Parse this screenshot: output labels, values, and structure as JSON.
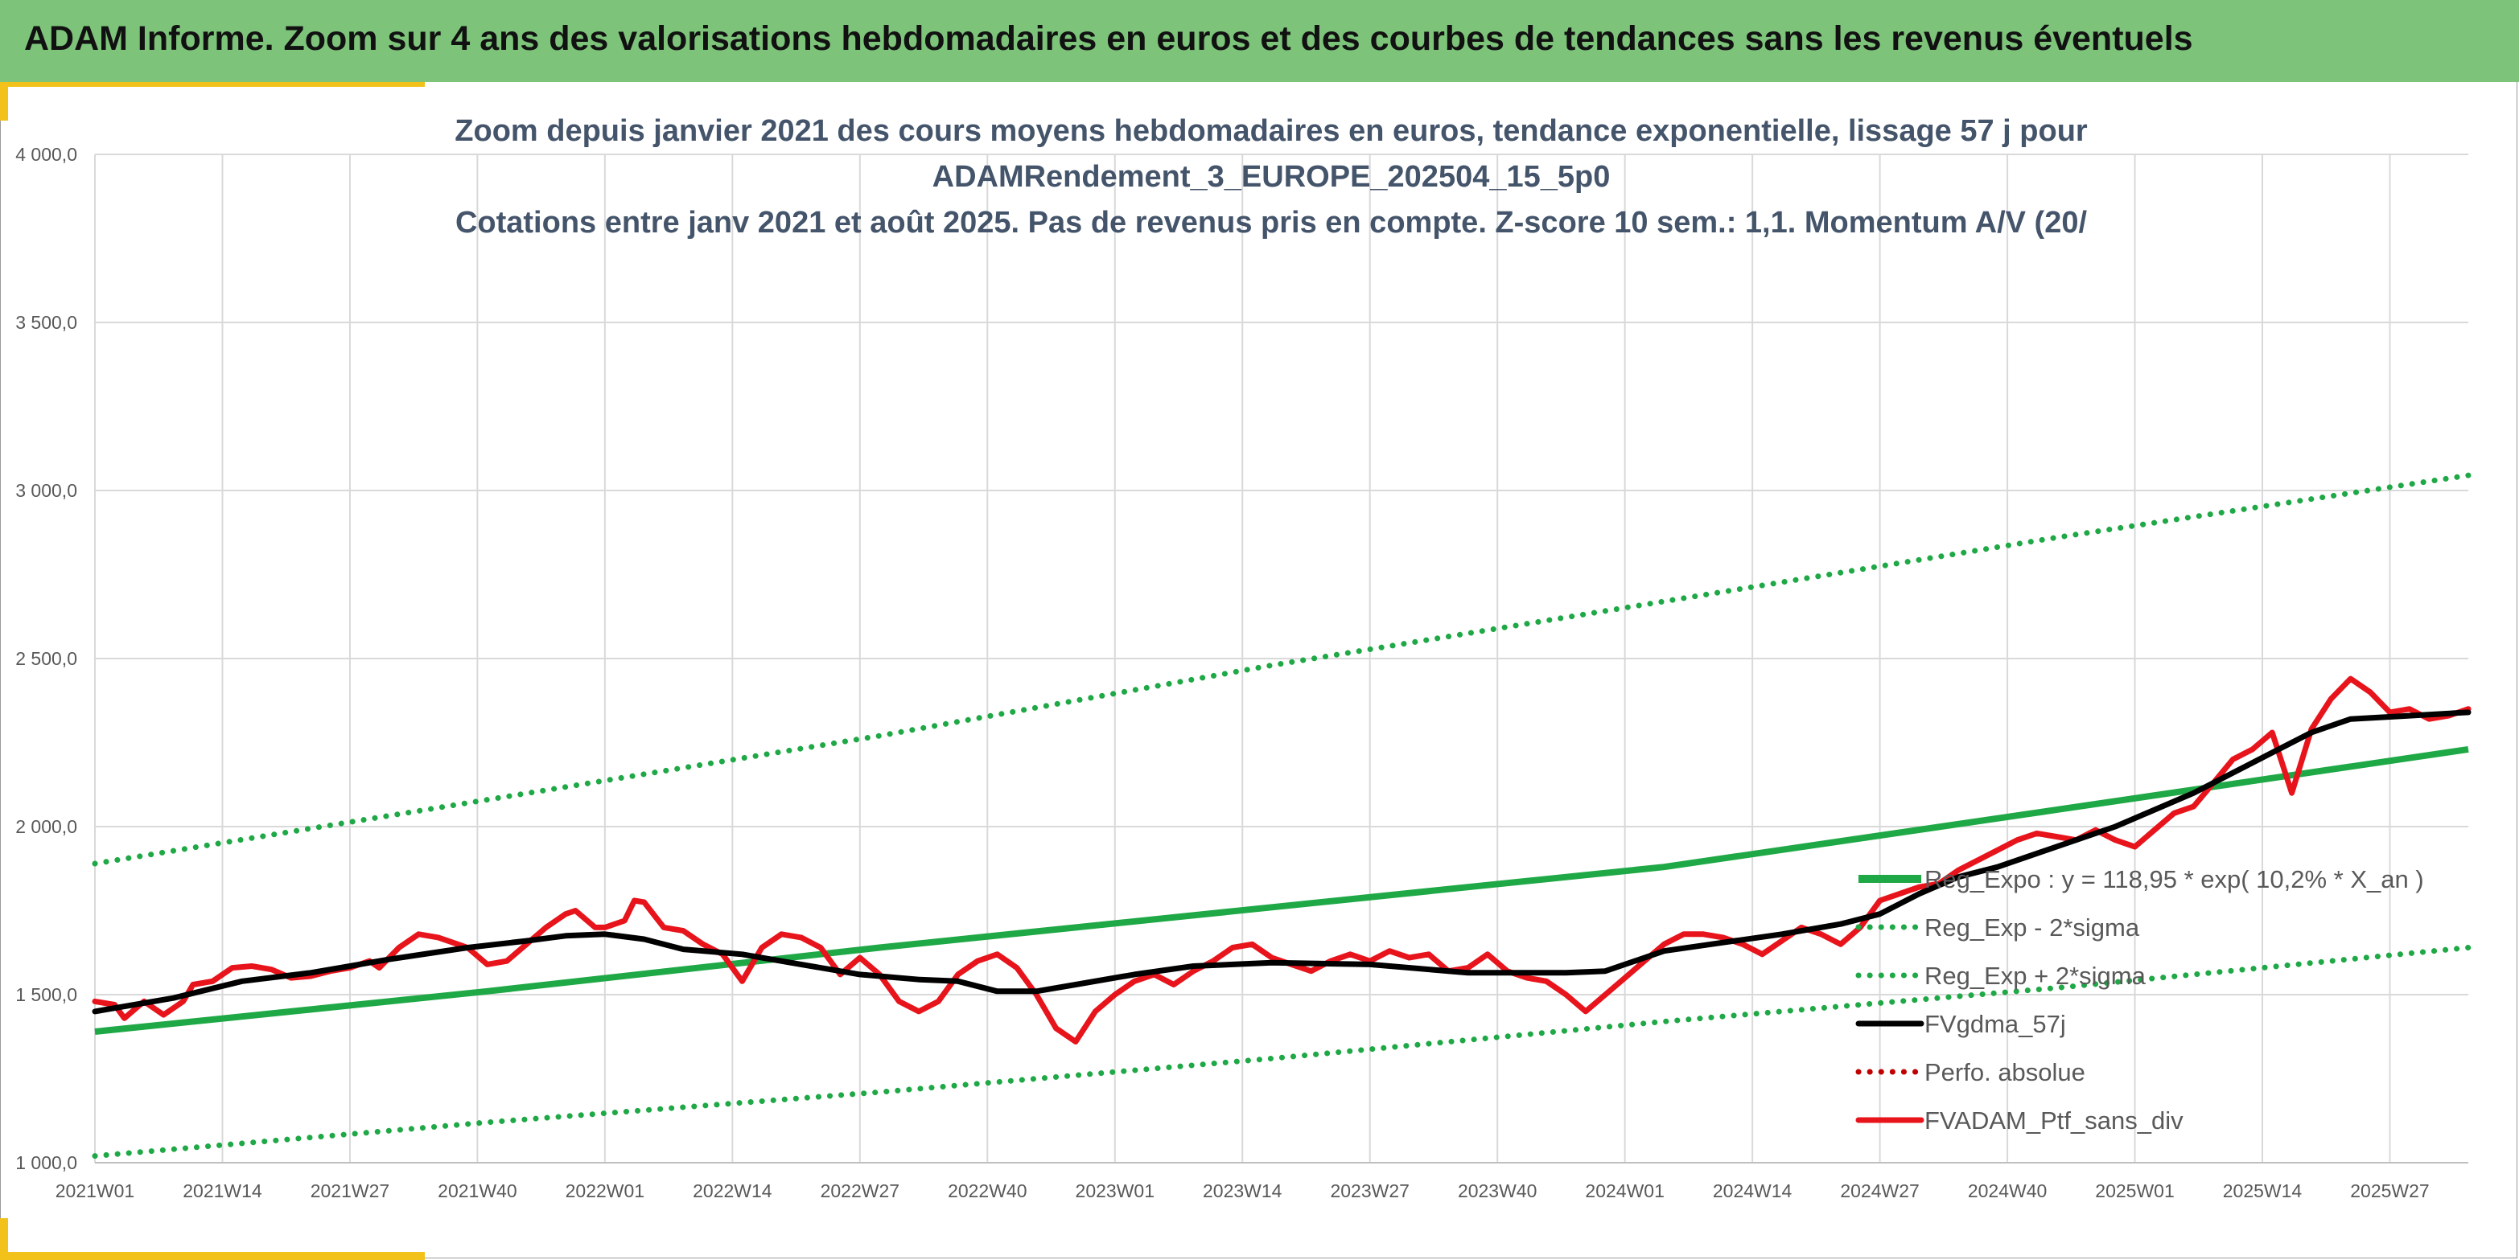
{
  "banner": {
    "title": "ADAM Informe. Zoom sur 4 ans des valorisations hebdomadaires en euros et des courbes de tendances sans les revenus éventuels"
  },
  "colors": {
    "banner_bg": "#7dc47a",
    "accent": "#f2c11a",
    "trend_green": "#1fa846",
    "smooth_black": "#000000",
    "price_red": "#e8141c",
    "perf_red_dotted": "#c00000",
    "title_text": "#44546a",
    "tick_text": "#595959"
  },
  "chart_data": {
    "type": "line",
    "title_lines": [
      "Zoom depuis janvier 2021 des cours moyens hebdomadaires en euros, tendance exponentielle, lissage 57 j pour",
      "ADAMRendement_3_EUROPE_202504_15_5p0",
      "Cotations entre janv 2021 et août 2025. Pas de revenus pris en compte. Z-score 10 sem.: 1,1. Momentum A/V (20/"
    ],
    "ylim": [
      1000,
      4000
    ],
    "y_ticks": [
      1000,
      1500,
      2000,
      2500,
      3000,
      3500,
      4000
    ],
    "y_tick_labels": [
      "1 000,0",
      "1 500,0",
      "2 000,0",
      "2 500,0",
      "3 000,0",
      "3 500,0",
      "4 000,0"
    ],
    "x_range": [
      0,
      242
    ],
    "x_ticks": [
      0,
      13,
      26,
      39,
      52,
      65,
      78,
      91,
      104,
      117,
      130,
      143,
      156,
      169,
      182,
      195,
      208,
      221,
      234
    ],
    "x_tick_labels": [
      "2021W01",
      "2021W14",
      "2021W27",
      "2021W40",
      "2022W01",
      "2022W14",
      "2022W27",
      "2022W40",
      "2023W01",
      "2023W14",
      "2023W27",
      "2023W40",
      "2024W01",
      "2024W14",
      "2024W27",
      "2024W40",
      "2025W01",
      "2025W14",
      "2025W27"
    ],
    "grid": true,
    "legend_position": "bottom-right",
    "series": [
      {
        "name": "Reg_Expo : y = 118,95 * exp( 10,2% *  X_an )",
        "style": "solid",
        "color": "#1fa846",
        "points": [
          [
            0,
            1390
          ],
          [
            40,
            1510
          ],
          [
            80,
            1640
          ],
          [
            120,
            1760
          ],
          [
            160,
            1880
          ],
          [
            200,
            2050
          ],
          [
            242,
            2230
          ]
        ]
      },
      {
        "name": "Reg_Exp - 2*sigma",
        "style": "dotted",
        "color": "#1fa846",
        "points": [
          [
            0,
            1020
          ],
          [
            40,
            1120
          ],
          [
            80,
            1210
          ],
          [
            120,
            1310
          ],
          [
            160,
            1420
          ],
          [
            200,
            1520
          ],
          [
            242,
            1640
          ]
        ]
      },
      {
        "name": "Reg_Exp + 2*sigma",
        "style": "dotted",
        "color": "#1fa846",
        "points": [
          [
            0,
            1890
          ],
          [
            40,
            2080
          ],
          [
            80,
            2270
          ],
          [
            120,
            2480
          ],
          [
            160,
            2670
          ],
          [
            200,
            2860
          ],
          [
            242,
            3045
          ]
        ]
      },
      {
        "name": "FVgdma_57j",
        "style": "solid",
        "color": "#000000",
        "points": [
          [
            0,
            1450
          ],
          [
            8,
            1490
          ],
          [
            15,
            1540
          ],
          [
            22,
            1565
          ],
          [
            30,
            1605
          ],
          [
            38,
            1640
          ],
          [
            44,
            1660
          ],
          [
            48,
            1675
          ],
          [
            52,
            1680
          ],
          [
            56,
            1665
          ],
          [
            60,
            1635
          ],
          [
            66,
            1620
          ],
          [
            72,
            1590
          ],
          [
            78,
            1560
          ],
          [
            84,
            1545
          ],
          [
            88,
            1540
          ],
          [
            92,
            1510
          ],
          [
            96,
            1510
          ],
          [
            100,
            1530
          ],
          [
            106,
            1560
          ],
          [
            112,
            1585
          ],
          [
            120,
            1595
          ],
          [
            130,
            1590
          ],
          [
            140,
            1565
          ],
          [
            150,
            1565
          ],
          [
            154,
            1570
          ],
          [
            160,
            1630
          ],
          [
            166,
            1655
          ],
          [
            172,
            1680
          ],
          [
            178,
            1710
          ],
          [
            182,
            1740
          ],
          [
            186,
            1800
          ],
          [
            190,
            1850
          ],
          [
            194,
            1880
          ],
          [
            198,
            1920
          ],
          [
            202,
            1960
          ],
          [
            206,
            2000
          ],
          [
            210,
            2050
          ],
          [
            214,
            2100
          ],
          [
            218,
            2160
          ],
          [
            222,
            2220
          ],
          [
            226,
            2280
          ],
          [
            230,
            2320
          ],
          [
            236,
            2330
          ],
          [
            242,
            2340
          ]
        ]
      },
      {
        "name": "Perfo. absolue",
        "style": "dotted",
        "color": "#c00000",
        "points": []
      },
      {
        "name": "FVADAM_Ptf_sans_div",
        "style": "solid",
        "color": "#e8141c",
        "points": [
          [
            0,
            1480
          ],
          [
            2,
            1470
          ],
          [
            3,
            1430
          ],
          [
            5,
            1480
          ],
          [
            7,
            1440
          ],
          [
            9,
            1480
          ],
          [
            10,
            1530
          ],
          [
            12,
            1540
          ],
          [
            14,
            1580
          ],
          [
            16,
            1585
          ],
          [
            18,
            1575
          ],
          [
            20,
            1550
          ],
          [
            22,
            1555
          ],
          [
            24,
            1570
          ],
          [
            26,
            1580
          ],
          [
            28,
            1600
          ],
          [
            29,
            1580
          ],
          [
            31,
            1640
          ],
          [
            33,
            1680
          ],
          [
            35,
            1670
          ],
          [
            37,
            1650
          ],
          [
            38,
            1640
          ],
          [
            40,
            1590
          ],
          [
            42,
            1600
          ],
          [
            44,
            1650
          ],
          [
            46,
            1700
          ],
          [
            48,
            1740
          ],
          [
            49,
            1750
          ],
          [
            51,
            1700
          ],
          [
            52,
            1700
          ],
          [
            54,
            1720
          ],
          [
            55,
            1780
          ],
          [
            56,
            1775
          ],
          [
            58,
            1700
          ],
          [
            60,
            1690
          ],
          [
            62,
            1650
          ],
          [
            64,
            1620
          ],
          [
            66,
            1540
          ],
          [
            68,
            1640
          ],
          [
            70,
            1680
          ],
          [
            72,
            1670
          ],
          [
            74,
            1640
          ],
          [
            76,
            1560
          ],
          [
            78,
            1610
          ],
          [
            80,
            1560
          ],
          [
            82,
            1480
          ],
          [
            84,
            1450
          ],
          [
            86,
            1480
          ],
          [
            88,
            1560
          ],
          [
            90,
            1600
          ],
          [
            92,
            1620
          ],
          [
            94,
            1580
          ],
          [
            96,
            1500
          ],
          [
            98,
            1400
          ],
          [
            100,
            1360
          ],
          [
            102,
            1450
          ],
          [
            104,
            1500
          ],
          [
            106,
            1540
          ],
          [
            108,
            1560
          ],
          [
            110,
            1530
          ],
          [
            112,
            1570
          ],
          [
            114,
            1600
          ],
          [
            116,
            1640
          ],
          [
            118,
            1650
          ],
          [
            120,
            1610
          ],
          [
            122,
            1590
          ],
          [
            124,
            1570
          ],
          [
            126,
            1600
          ],
          [
            128,
            1620
          ],
          [
            130,
            1600
          ],
          [
            132,
            1630
          ],
          [
            134,
            1610
          ],
          [
            136,
            1620
          ],
          [
            138,
            1570
          ],
          [
            140,
            1580
          ],
          [
            142,
            1620
          ],
          [
            144,
            1570
          ],
          [
            146,
            1550
          ],
          [
            148,
            1540
          ],
          [
            150,
            1500
          ],
          [
            152,
            1450
          ],
          [
            154,
            1500
          ],
          [
            156,
            1550
          ],
          [
            158,
            1600
          ],
          [
            160,
            1650
          ],
          [
            162,
            1680
          ],
          [
            164,
            1680
          ],
          [
            166,
            1670
          ],
          [
            168,
            1650
          ],
          [
            170,
            1620
          ],
          [
            172,
            1660
          ],
          [
            174,
            1700
          ],
          [
            176,
            1680
          ],
          [
            178,
            1650
          ],
          [
            180,
            1700
          ],
          [
            182,
            1780
          ],
          [
            184,
            1800
          ],
          [
            186,
            1820
          ],
          [
            188,
            1830
          ],
          [
            190,
            1870
          ],
          [
            192,
            1900
          ],
          [
            194,
            1930
          ],
          [
            196,
            1960
          ],
          [
            198,
            1980
          ],
          [
            200,
            1970
          ],
          [
            202,
            1960
          ],
          [
            204,
            1990
          ],
          [
            206,
            1960
          ],
          [
            208,
            1940
          ],
          [
            210,
            1990
          ],
          [
            212,
            2040
          ],
          [
            214,
            2060
          ],
          [
            216,
            2130
          ],
          [
            218,
            2200
          ],
          [
            220,
            2230
          ],
          [
            222,
            2280
          ],
          [
            224,
            2100
          ],
          [
            226,
            2290
          ],
          [
            228,
            2380
          ],
          [
            230,
            2440
          ],
          [
            232,
            2400
          ],
          [
            234,
            2340
          ],
          [
            236,
            2350
          ],
          [
            238,
            2320
          ],
          [
            240,
            2330
          ],
          [
            242,
            2350
          ]
        ]
      }
    ]
  }
}
